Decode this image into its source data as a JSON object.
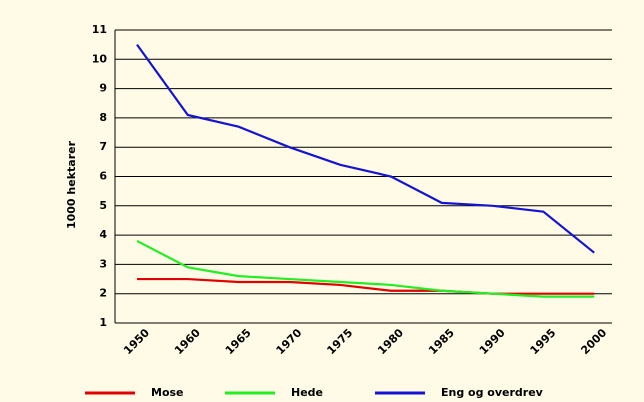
{
  "chart_data": {
    "type": "line",
    "y_label": "1000 hektarer",
    "categories": [
      "1950",
      "1960",
      "1965",
      "1970",
      "1975",
      "1980",
      "1985",
      "1990",
      "1995",
      "2000"
    ],
    "series": [
      {
        "name": "Mose",
        "color": "#e00000",
        "values": [
          2.5,
          2.5,
          2.4,
          2.4,
          2.3,
          2.1,
          2.1,
          2.0,
          2.0,
          2.0
        ]
      },
      {
        "name": "Hede",
        "color": "#22ee22",
        "values": [
          3.8,
          2.9,
          2.6,
          2.5,
          2.4,
          2.3,
          2.1,
          2.0,
          1.9,
          1.9
        ]
      },
      {
        "name": "Eng og overdrev",
        "color": "#1414d2",
        "values": [
          10.5,
          8.1,
          7.7,
          7.0,
          6.4,
          6.0,
          5.1,
          5.0,
          4.8,
          3.4
        ]
      }
    ],
    "ylim": [
      1,
      11
    ],
    "yticks": [
      1,
      2,
      3,
      4,
      5,
      6,
      7,
      8,
      9,
      10,
      11
    ],
    "grid": true
  }
}
